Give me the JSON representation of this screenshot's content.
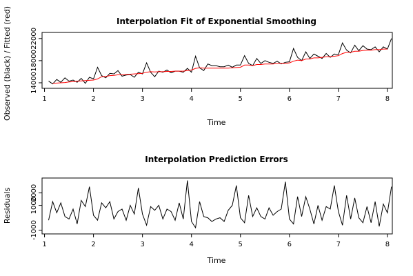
{
  "chart_data": [
    {
      "type": "line",
      "title": "Interpolation Fit of Exponential Smoothing",
      "xlabel": "Time",
      "ylabel": "Observed (black) / Fitted (red)",
      "xlim": [
        0.95,
        8.1
      ],
      "ylim": [
        13000,
        23100
      ],
      "xticks": [
        1,
        2,
        3,
        4,
        5,
        6,
        7,
        8
      ],
      "yticks": [
        14000,
        18000,
        22000
      ],
      "series": [
        {
          "color": "#000000",
          "x0": 1.0833,
          "dx": 0.08333,
          "values": [
            14300,
            13800,
            14600,
            14100,
            14900,
            14300,
            14500,
            14100,
            14800,
            13900,
            15000,
            14700,
            16800,
            15300,
            14900,
            15700,
            15600,
            16200,
            15200,
            15400,
            15500,
            15000,
            15900,
            15600,
            17600,
            15900,
            15100,
            16100,
            15900,
            16300,
            15800,
            16100,
            16100,
            15900,
            16600,
            15900,
            18800,
            16700,
            16200,
            17400,
            17100,
            17100,
            16900,
            16900,
            17200,
            16800,
            17200,
            17200,
            18900,
            17500,
            17100,
            18400,
            17500,
            18000,
            17700,
            17500,
            17900,
            17400,
            17700,
            17800,
            20200,
            18600,
            18000,
            19600,
            18400,
            19200,
            18800,
            18400,
            19300,
            18600,
            19200,
            19100,
            21200,
            19900,
            19400,
            20800,
            19800,
            20700,
            20100,
            20000,
            20500,
            19600,
            20500,
            20100,
            22000
          ]
        },
        {
          "color": "#ff0000",
          "x0": 1.1667,
          "dx": 0.08333,
          "values": [
            13900,
            13950,
            14000,
            14050,
            14150,
            14200,
            14300,
            14350,
            14400,
            14450,
            14500,
            14700,
            15100,
            15150,
            15300,
            15350,
            15450,
            15450,
            15500,
            15550,
            15600,
            15650,
            15700,
            15900,
            16000,
            15950,
            16000,
            16000,
            16050,
            16050,
            16100,
            16100,
            16100,
            16200,
            16300,
            16600,
            16700,
            16650,
            16650,
            16650,
            16650,
            16650,
            16650,
            16650,
            16700,
            16750,
            16800,
            17200,
            17200,
            17100,
            17300,
            17300,
            17400,
            17400,
            17400,
            17500,
            17500,
            17500,
            17600,
            17900,
            18100,
            18000,
            18300,
            18300,
            18500,
            18500,
            18600,
            18700,
            18700,
            18800,
            18900,
            19300,
            19500,
            19500,
            19700,
            19700,
            19850,
            19900,
            19900,
            20000,
            20000,
            20100,
            20100
          ]
        }
      ]
    },
    {
      "type": "line",
      "title": "Interpolation Prediction Errors",
      "xlabel": "Time",
      "ylabel": "Residuals",
      "xlim": [
        0.95,
        8.1
      ],
      "ylim": [
        -1300,
        3200
      ],
      "xticks": [
        1,
        2,
        3,
        4,
        5,
        6,
        7,
        8
      ],
      "yticks": [
        -1000,
        1000,
        2000
      ],
      "series": [
        {
          "color": "#000000",
          "x0": 1.0833,
          "dx": 0.08333,
          "values": [
            -200,
            1300,
            400,
            1200,
            100,
            -100,
            700,
            -500,
            1400,
            900,
            2500,
            200,
            -200,
            1200,
            800,
            1300,
            -100,
            500,
            700,
            -200,
            1000,
            300,
            2400,
            300,
            -600,
            900,
            600,
            1000,
            -100,
            700,
            500,
            -200,
            1200,
            -100,
            3000,
            -300,
            -800,
            1300,
            100,
            0,
            -300,
            -100,
            0,
            -300,
            600,
            1000,
            2600,
            0,
            -400,
            1800,
            100,
            800,
            100,
            -100,
            800,
            200,
            500,
            700,
            2900,
            -100,
            -500,
            1700,
            100,
            1700,
            700,
            -500,
            1000,
            -200,
            900,
            700,
            2600,
            500,
            -600,
            1800,
            -100,
            1600,
            0,
            -400,
            900,
            -400,
            1300,
            -700,
            1100,
            400,
            2500
          ]
        }
      ]
    }
  ]
}
